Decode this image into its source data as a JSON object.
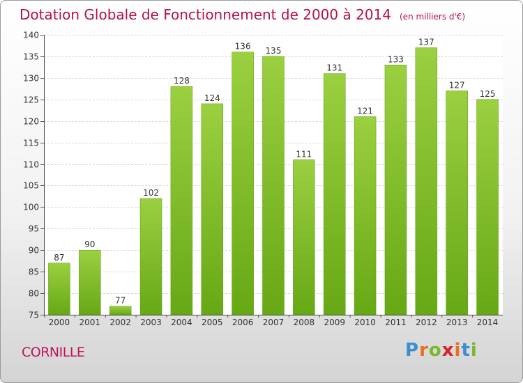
{
  "commune": "CORNILLE",
  "logo": {
    "text": "Proxiti",
    "letter_colors": [
      "#3a8fd0",
      "#e8701f",
      "#7bb82a",
      "#d9202a",
      "#e8701f",
      "#3a8fd0",
      "#7bb82a"
    ]
  },
  "chart_data": {
    "type": "bar",
    "title": "Dotation Globale de Fonctionnement de 2000 à 2014",
    "unit": "(en milliers d'€)",
    "categories": [
      "2000",
      "2001",
      "2002",
      "2003",
      "2004",
      "2005",
      "2006",
      "2007",
      "2008",
      "2009",
      "2010",
      "2011",
      "2012",
      "2013",
      "2014"
    ],
    "values": [
      87,
      90,
      77,
      102,
      128,
      124,
      136,
      135,
      111,
      131,
      121,
      133,
      137,
      127,
      125
    ],
    "ylim": [
      75,
      140
    ],
    "yticks": [
      75,
      80,
      85,
      90,
      95,
      100,
      105,
      110,
      115,
      120,
      125,
      130,
      135,
      140
    ],
    "xlabel": "",
    "ylabel": "",
    "grid": true,
    "bar_color": "#7dbb2a"
  }
}
